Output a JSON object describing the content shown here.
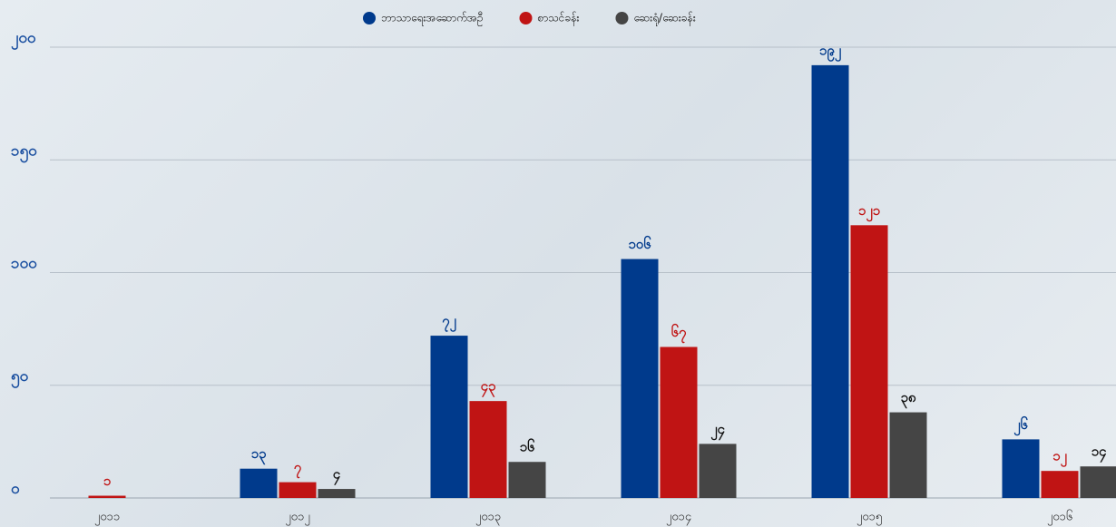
{
  "chart_data": {
    "type": "bar",
    "categories": [
      "၂၀၁၁",
      "၂၀၁၂",
      "၂၀၁၃",
      "၂၀၁၄",
      "၂၀၁၅",
      "၂၀၁၆"
    ],
    "series": [
      {
        "name": "ဘာသာရေးအဆောက်အဦ",
        "color": "#003a8c",
        "values": [
          null,
          13,
          72,
          106,
          192,
          26
        ],
        "value_labels": [
          null,
          "၁၃",
          "၇၂",
          "၁၀၆",
          "၁၉၂",
          "၂၆"
        ]
      },
      {
        "name": "စာသင်ခန်း",
        "color": "#c01414",
        "values": [
          1,
          7,
          43,
          67,
          121,
          12
        ],
        "value_labels": [
          "၁",
          "၇",
          "၄၃",
          "၆၇",
          "၁၂၁",
          "၁၂"
        ]
      },
      {
        "name": "ဆေးရုံ/ဆေးခန်း",
        "color": "#454545",
        "values": [
          null,
          4,
          16,
          24,
          38,
          14
        ],
        "value_labels": [
          null,
          "၄",
          "၁၆",
          "၂၄",
          "၃၈",
          "၁၄"
        ]
      }
    ],
    "ylim": [
      0,
      200
    ],
    "yticks": [
      {
        "value": 0,
        "label": "၀"
      },
      {
        "value": 50,
        "label": "၅၀"
      },
      {
        "value": 100,
        "label": "၁၀၀"
      },
      {
        "value": 150,
        "label": "၁၅၀"
      },
      {
        "value": 200,
        "label": "၂၀၀"
      }
    ],
    "grid": true,
    "legend": "top"
  }
}
